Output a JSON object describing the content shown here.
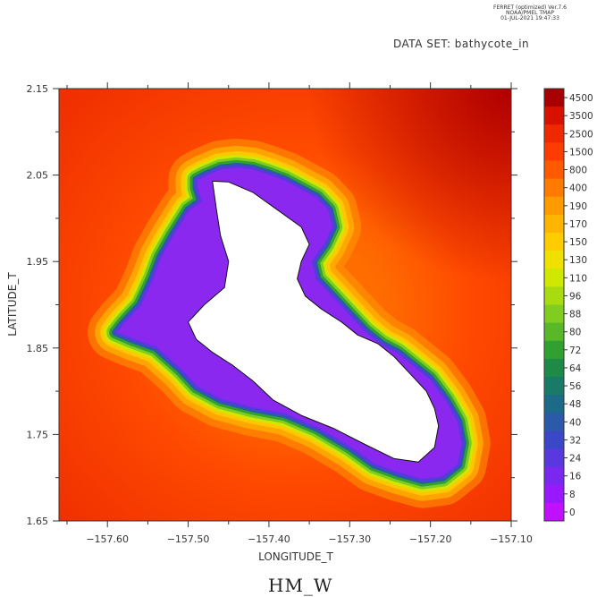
{
  "header": {
    "line1": "FERRET (optimized) Ver.7.6",
    "line2": "NOAA/PMEL TMAP",
    "line3": "01-JUL-2021 19:47:33",
    "dataset": "DATA SET: bathycote_in"
  },
  "footer": {
    "label": "HM_W"
  },
  "chart_data": {
    "type": "heatmap",
    "title": "",
    "xlabel": "LONGITUDE_T",
    "ylabel": "LATITUDE_T",
    "xlim": [
      -157.66,
      -157.1
    ],
    "ylim": [
      1.65,
      2.15
    ],
    "xticks": [
      -157.6,
      -157.5,
      -157.4,
      -157.3,
      -157.2,
      -157.1
    ],
    "xtick_labels": [
      "−157.60",
      "−157.50",
      "−157.40",
      "−157.30",
      "−157.20",
      "−157.10"
    ],
    "yticks": [
      1.65,
      1.75,
      1.85,
      1.95,
      2.05,
      2.15
    ],
    "ytick_labels": [
      "1.65",
      "1.75",
      "1.85",
      "1.95",
      "2.05",
      "2.15"
    ],
    "colorbar": {
      "levels": [
        "4500",
        "3500",
        "2500",
        "1500",
        "800",
        "400",
        "190",
        "170",
        "150",
        "130",
        "110",
        "96",
        "88",
        "80",
        "72",
        "64",
        "56",
        "48",
        "40",
        "32",
        "24",
        "16",
        "8",
        "0"
      ],
      "colors": [
        "#a80000",
        "#d81000",
        "#f02800",
        "#ff3c00",
        "#ff5a00",
        "#ff7a00",
        "#ff9a00",
        "#ffb400",
        "#ffcc00",
        "#f0e000",
        "#d0e800",
        "#a8dc10",
        "#80cc20",
        "#58b828",
        "#30a030",
        "#1f8a48",
        "#1a7a68",
        "#1a6a88",
        "#2a5aa8",
        "#3a48c8",
        "#5a38e0",
        "#7a28f0",
        "#9a18ff",
        "#c010ff"
      ],
      "position": "right"
    },
    "background_level": "2500",
    "island_outline": [
      [
        -157.49,
        2.045
      ],
      [
        -157.48,
        2.05
      ],
      [
        -157.46,
        2.058
      ],
      [
        -157.44,
        2.06
      ],
      [
        -157.42,
        2.058
      ],
      [
        -157.4,
        2.052
      ],
      [
        -157.38,
        2.045
      ],
      [
        -157.36,
        2.035
      ],
      [
        -157.34,
        2.025
      ],
      [
        -157.325,
        2.01
      ],
      [
        -157.32,
        1.99
      ],
      [
        -157.33,
        1.97
      ],
      [
        -157.345,
        1.95
      ],
      [
        -157.34,
        1.93
      ],
      [
        -157.32,
        1.91
      ],
      [
        -157.3,
        1.89
      ],
      [
        -157.28,
        1.87
      ],
      [
        -157.26,
        1.855
      ],
      [
        -157.24,
        1.845
      ],
      [
        -157.22,
        1.83
      ],
      [
        -157.2,
        1.815
      ],
      [
        -157.18,
        1.79
      ],
      [
        -157.165,
        1.765
      ],
      [
        -157.16,
        1.74
      ],
      [
        -157.165,
        1.715
      ],
      [
        -157.185,
        1.7
      ],
      [
        -157.21,
        1.697
      ],
      [
        -157.24,
        1.705
      ],
      [
        -157.27,
        1.715
      ],
      [
        -157.3,
        1.735
      ],
      [
        -157.34,
        1.757
      ],
      [
        -157.38,
        1.773
      ],
      [
        -157.42,
        1.78
      ],
      [
        -157.46,
        1.79
      ],
      [
        -157.49,
        1.805
      ],
      [
        -157.51,
        1.825
      ],
      [
        -157.54,
        1.85
      ],
      [
        -157.57,
        1.86
      ],
      [
        -157.59,
        1.868
      ],
      [
        -157.58,
        1.88
      ],
      [
        -157.56,
        1.9
      ],
      [
        -157.545,
        1.93
      ],
      [
        -157.535,
        1.955
      ],
      [
        -157.52,
        1.98
      ],
      [
        -157.5,
        2.01
      ],
      [
        -157.485,
        2.02
      ],
      [
        -157.49,
        2.035
      ]
    ],
    "lagoon_outline": [
      [
        -157.47,
        2.043
      ],
      [
        -157.45,
        2.042
      ],
      [
        -157.42,
        2.03
      ],
      [
        -157.39,
        2.01
      ],
      [
        -157.36,
        1.99
      ],
      [
        -157.35,
        1.97
      ],
      [
        -157.36,
        1.95
      ],
      [
        -157.365,
        1.93
      ],
      [
        -157.355,
        1.91
      ],
      [
        -157.335,
        1.895
      ],
      [
        -157.31,
        1.88
      ],
      [
        -157.29,
        1.865
      ],
      [
        -157.265,
        1.855
      ],
      [
        -157.245,
        1.84
      ],
      [
        -157.225,
        1.82
      ],
      [
        -157.205,
        1.8
      ],
      [
        -157.195,
        1.78
      ],
      [
        -157.19,
        1.76
      ],
      [
        -157.195,
        1.735
      ],
      [
        -157.215,
        1.718
      ],
      [
        -157.245,
        1.722
      ],
      [
        -157.28,
        1.738
      ],
      [
        -157.32,
        1.757
      ],
      [
        -157.36,
        1.772
      ],
      [
        -157.395,
        1.79
      ],
      [
        -157.42,
        1.812
      ],
      [
        -157.445,
        1.83
      ],
      [
        -157.47,
        1.845
      ],
      [
        -157.49,
        1.86
      ],
      [
        -157.5,
        1.88
      ],
      [
        -157.48,
        1.9
      ],
      [
        -157.455,
        1.92
      ],
      [
        -157.45,
        1.95
      ],
      [
        -157.46,
        1.98
      ],
      [
        -157.465,
        2.01
      ],
      [
        -157.468,
        2.03
      ]
    ]
  }
}
